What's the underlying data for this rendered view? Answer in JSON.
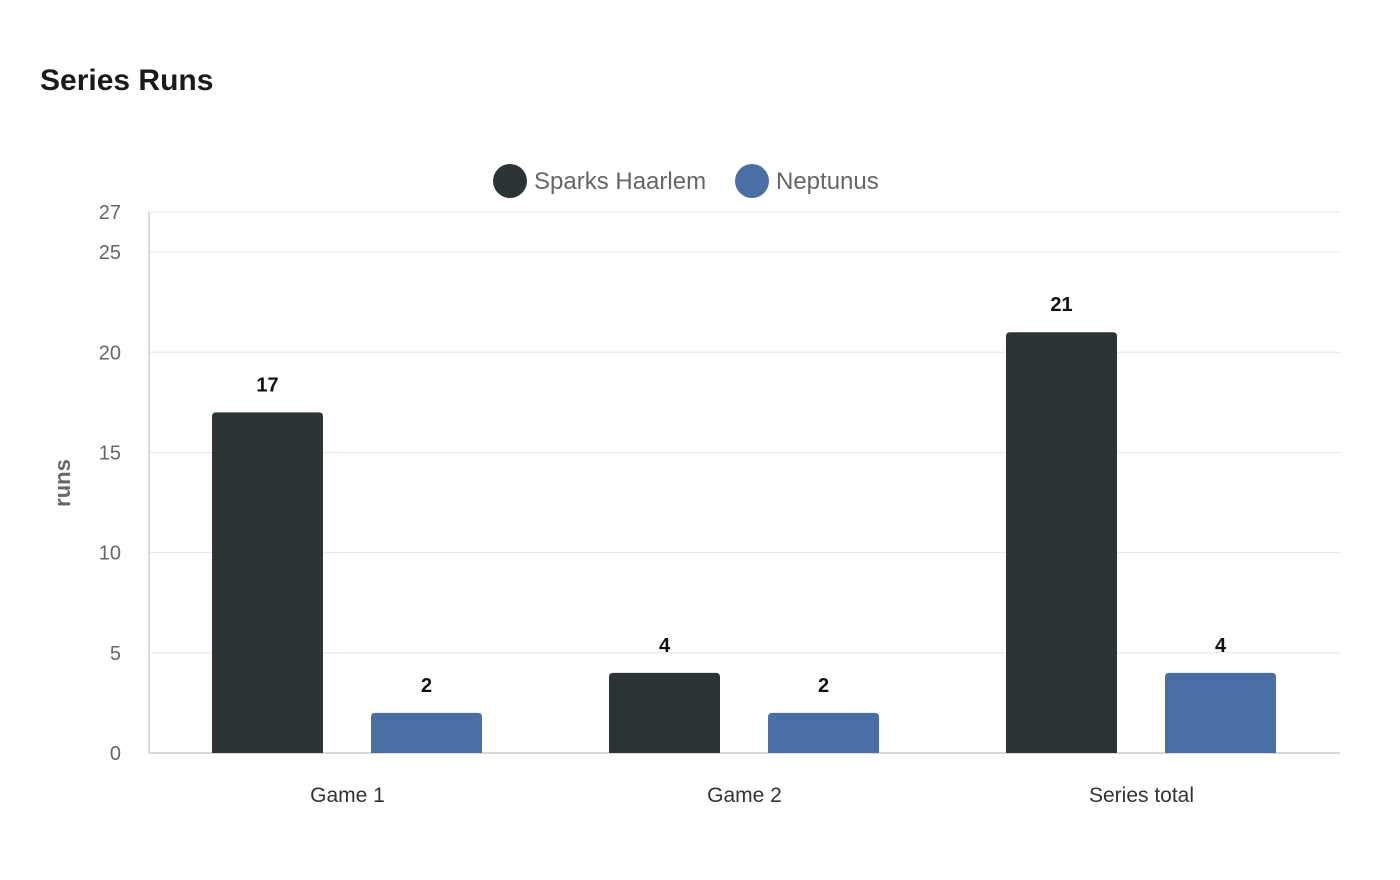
{
  "chart_data": {
    "type": "bar",
    "title": "Series Runs",
    "xlabel": "",
    "ylabel": "runs",
    "categories": [
      "Game 1",
      "Game 2",
      "Series total"
    ],
    "series": [
      {
        "name": "Sparks Haarlem",
        "color": "#2d3436",
        "values": [
          17,
          4,
          21
        ]
      },
      {
        "name": "Neptunus",
        "color": "#4a6fa5",
        "values": [
          2,
          2,
          4
        ]
      }
    ],
    "ylim": [
      0,
      27
    ],
    "yticks": [
      0,
      5,
      10,
      15,
      20,
      25,
      27
    ],
    "grid": true,
    "legend_position": "top-center",
    "data_labels": true
  }
}
